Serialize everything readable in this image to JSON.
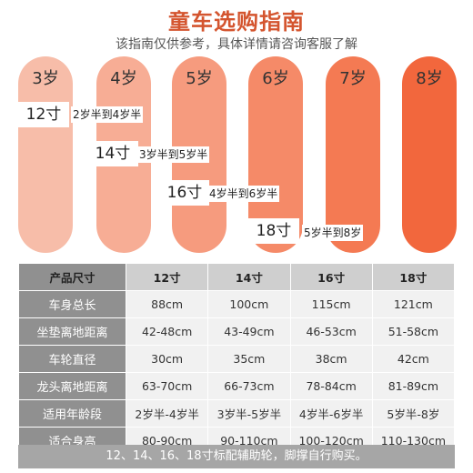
{
  "header": {
    "title": "童车选购指南",
    "subtitle": "该指南仅供参考，具体详情请咨询客服了解"
  },
  "colors": {
    "title": "#d4552f",
    "bars": [
      "#f7bda9",
      "#f7ad95",
      "#f69b7e",
      "#f58a68",
      "#f47a53",
      "#f2673d"
    ]
  },
  "ages": [
    "3岁",
    "4岁",
    "5岁",
    "6岁",
    "7岁",
    "8岁"
  ],
  "guide": [
    {
      "size": "12寸",
      "range": "2岁半到4岁半"
    },
    {
      "size": "14寸",
      "range": "3岁半到5岁半"
    },
    {
      "size": "16寸",
      "range": "4岁半到6岁半"
    },
    {
      "size": "18寸",
      "range": "5岁半到8岁"
    }
  ],
  "table": {
    "header": [
      "产品尺寸",
      "12寸",
      "14寸",
      "16寸",
      "18寸"
    ],
    "rows": [
      {
        "label": "车身总长",
        "values": [
          "88cm",
          "100cm",
          "115cm",
          "121cm"
        ]
      },
      {
        "label": "坐垫离地距离",
        "values": [
          "42-48cm",
          "43-49cm",
          "46-53cm",
          "51-58cm"
        ]
      },
      {
        "label": "车轮直径",
        "values": [
          "30cm",
          "35cm",
          "38cm",
          "42cm"
        ]
      },
      {
        "label": "龙头离地距离",
        "values": [
          "63-70cm",
          "66-73cm",
          "78-84cm",
          "81-89cm"
        ]
      },
      {
        "label": "适用年龄段",
        "values": [
          "2岁半-4岁半",
          "3岁半-5岁半",
          "4岁半-6岁半",
          "5岁半-8岁"
        ]
      },
      {
        "label": "适合身高",
        "values": [
          "80-90cm",
          "90-110cm",
          "100-120cm",
          "110-130cm"
        ]
      }
    ]
  },
  "note": "12、14、16、18寸标配辅助轮，脚撑自行购买。"
}
